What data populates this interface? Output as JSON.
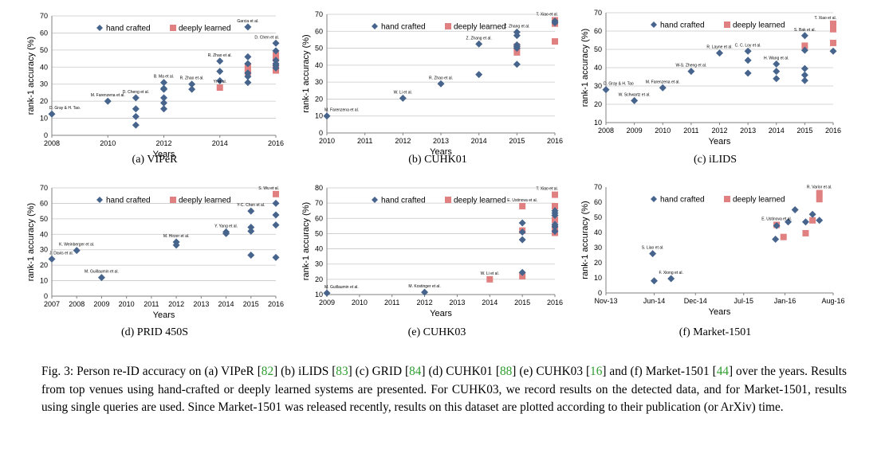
{
  "legend": {
    "hand": "hand crafted",
    "deep": "deeply learned"
  },
  "colors": {
    "hand": "#46648c",
    "deep": "#e08080",
    "grid": "#c8c8c8",
    "axis": "#808080"
  },
  "sub_captions": [
    "(a)  VIPeR",
    "(b)  CUHK01",
    "(c)  iLIDS",
    "(d)  PRID 450S",
    "(e)  CUHK03",
    "(f)  Market-1501"
  ],
  "caption": {
    "p1": "Fig. 3: Person re-ID accuracy on (a) VIPeR [",
    "r1": "82",
    "p2": "] (b) iLIDS [",
    "r2": "83",
    "p3": "] (c) GRID [",
    "r3": "84",
    "p4": "] (d) CUHK01 [",
    "r4": "88",
    "p5": "] (e) CUHK03 [",
    "r5": "16",
    "p6": "] and (f) Market-1501 [",
    "r6": "44",
    "p7": "] over the years. Results from top venues using hand-crafted or deeply learned systems are presented. For CUHK03, we record results on the detected data, and for Market-1501, results using single queries are used. Since Market-1501 was released recently, results on this dataset are plotted according to their publication (or ArXiv) time."
  },
  "chart_data": [
    {
      "type": "scatter",
      "xlabel": "Years",
      "ylabel": "rank-1 accuracy (%)",
      "xlim": [
        2008,
        2016
      ],
      "ylim": [
        0,
        70
      ],
      "xticks": [
        2008,
        2010,
        2012,
        2014,
        2016
      ],
      "xtick_labels": [
        "2008",
        "2010",
        "2012",
        "2014",
        "2016"
      ],
      "yticks": [
        0,
        10,
        20,
        30,
        40,
        50,
        60,
        70
      ],
      "grid": true,
      "legend": "top",
      "series": [
        {
          "name": "hand crafted",
          "marker": "diamond",
          "x": [
            2008,
            2010,
            2011,
            2011,
            2011,
            2011,
            2012,
            2012,
            2012,
            2012,
            2012,
            2012,
            2013,
            2013,
            2014,
            2014,
            2014,
            2015,
            2015,
            2015,
            2015,
            2015,
            2015,
            2016,
            2016,
            2016,
            2016,
            2016,
            2016
          ],
          "y": [
            12.5,
            20,
            22,
            15.5,
            11,
            6,
            31,
            27,
            22,
            19,
            15.5,
            27.5,
            30,
            27,
            43.5,
            37.5,
            32,
            63.5,
            46,
            42,
            36.5,
            34.5,
            31,
            54,
            49.5,
            44,
            42,
            39.5,
            41
          ]
        },
        {
          "name": "deeply learned",
          "marker": "square",
          "x": [
            2014,
            2015,
            2015,
            2015,
            2016,
            2016,
            2016,
            2016
          ],
          "y": [
            28,
            40.5,
            38.5,
            37,
            47,
            45,
            40,
            38
          ]
        }
      ],
      "annotations": [
        {
          "text": "D. Gray & H. Tao.",
          "x": 2008,
          "y": 12.5
        },
        {
          "text": "M. Farenzena et al.",
          "x": 2010,
          "y": 20
        },
        {
          "text": "D. Cheng et al.",
          "x": 2011,
          "y": 22
        },
        {
          "text": "B. Ma et al.",
          "x": 2012,
          "y": 31
        },
        {
          "text": "R. Zhao et al.",
          "x": 2013,
          "y": 30
        },
        {
          "text": "R. Zhao et al.",
          "x": 2014,
          "y": 43.5
        },
        {
          "text": "Yi et al.",
          "x": 2014,
          "y": 28
        },
        {
          "text": "Garcia et al.",
          "x": 2015,
          "y": 63.5
        },
        {
          "text": "D. Chen et al.",
          "x": 2016,
          "y": 54
        }
      ]
    },
    {
      "type": "scatter",
      "xlabel": "Years",
      "ylabel": "rank-1 accuracy (%)",
      "xlim": [
        2010,
        2016
      ],
      "ylim": [
        0,
        70
      ],
      "xticks": [
        2010,
        2011,
        2012,
        2013,
        2014,
        2015,
        2016
      ],
      "xtick_labels": [
        "2010",
        "2011",
        "2012",
        "2013",
        "2014",
        "2015",
        "2016"
      ],
      "yticks": [
        0,
        10,
        20,
        30,
        40,
        50,
        60,
        70
      ],
      "grid": true,
      "legend": "top",
      "series": [
        {
          "name": "hand crafted",
          "marker": "diamond",
          "x": [
            2010,
            2012,
            2013,
            2014,
            2014,
            2015,
            2015,
            2015,
            2015,
            2015,
            2015,
            2016,
            2016
          ],
          "y": [
            10,
            20.5,
            29,
            34.5,
            52.5,
            59.5,
            57.5,
            52,
            51,
            50,
            40.5,
            66,
            65
          ]
        },
        {
          "name": "deeply learned",
          "marker": "square",
          "x": [
            2015,
            2015,
            2016,
            2016,
            2016
          ],
          "y": [
            47.5,
            51,
            54,
            66.5,
            64.5
          ]
        }
      ],
      "annotations": [
        {
          "text": "M. Farenzena et al.",
          "x": 2010,
          "y": 10
        },
        {
          "text": "W. Li et al.",
          "x": 2012,
          "y": 20.5
        },
        {
          "text": "R. Zhao et al.",
          "x": 2013,
          "y": 29
        },
        {
          "text": "Z. Zhang et al.",
          "x": 2014,
          "y": 52.5
        },
        {
          "text": "Z. Zhang et al.",
          "x": 2015,
          "y": 59.5
        },
        {
          "text": "T. Xiao et al.",
          "x": 2016,
          "y": 66.5
        }
      ]
    },
    {
      "type": "scatter",
      "xlabel": "Years",
      "ylabel": "rank-1 accuracy (%)",
      "xlim": [
        2008,
        2016
      ],
      "ylim": [
        10,
        70
      ],
      "xticks": [
        2008,
        2009,
        2010,
        2011,
        2012,
        2013,
        2014,
        2015,
        2016
      ],
      "xtick_labels": [
        "2008",
        "2009",
        "2010",
        "2011",
        "2012",
        "2013",
        "2014",
        "2015",
        "2016"
      ],
      "yticks": [
        10,
        20,
        30,
        40,
        50,
        60,
        70
      ],
      "grid": true,
      "legend": "top",
      "series": [
        {
          "name": "hand crafted",
          "marker": "diamond",
          "x": [
            2008,
            2009,
            2010,
            2011,
            2012,
            2013,
            2013,
            2013,
            2014,
            2014,
            2014,
            2015,
            2015,
            2015,
            2015,
            2015,
            2016
          ],
          "y": [
            28,
            22,
            29,
            38,
            48,
            49,
            44,
            37,
            42,
            38,
            34,
            57.5,
            49.5,
            39.5,
            36,
            33,
            49
          ]
        },
        {
          "name": "deeply learned",
          "marker": "square",
          "x": [
            2015,
            2016,
            2016,
            2016
          ],
          "y": [
            52,
            64,
            61,
            53.5
          ]
        }
      ],
      "annotations": [
        {
          "text": "D. Gray & H. Tao",
          "x": 2008,
          "y": 28
        },
        {
          "text": "W. Schwartz et al.",
          "x": 2009,
          "y": 22
        },
        {
          "text": "M. Farenzena et al.",
          "x": 2010,
          "y": 29
        },
        {
          "text": "W-S. Zheng et al.",
          "x": 2011,
          "y": 38
        },
        {
          "text": "R. Layne et al.",
          "x": 2012,
          "y": 48
        },
        {
          "text": "C. C. Loy et al.",
          "x": 2013,
          "y": 49
        },
        {
          "text": "H. Wang et al.",
          "x": 2014,
          "y": 42
        },
        {
          "text": "S. Bak et al.",
          "x": 2015,
          "y": 57.5
        },
        {
          "text": "T. Xiao et al.",
          "x": 2016,
          "y": 64
        }
      ]
    },
    {
      "type": "scatter",
      "xlabel": "Years",
      "ylabel": "rank-1 accuracy (%)",
      "xlim": [
        2007,
        2016
      ],
      "ylim": [
        0,
        70
      ],
      "xticks": [
        2007,
        2008,
        2009,
        2010,
        2011,
        2012,
        2013,
        2014,
        2015,
        2016
      ],
      "xtick_labels": [
        "2007",
        "2008",
        "2009",
        "2010",
        "2011",
        "2012",
        "2013",
        "2014",
        "2015",
        "2016"
      ],
      "yticks": [
        0,
        10,
        20,
        30,
        40,
        50,
        60,
        70
      ],
      "grid": true,
      "legend": "top",
      "series": [
        {
          "name": "hand crafted",
          "marker": "diamond",
          "x": [
            2007,
            2008,
            2009,
            2012,
            2012,
            2014,
            2014,
            2015,
            2015,
            2015,
            2015,
            2016,
            2016,
            2016,
            2016
          ],
          "y": [
            24,
            29.5,
            12,
            35,
            33,
            41.5,
            40.5,
            55,
            44.5,
            42,
            26.5,
            60,
            52.5,
            46,
            25
          ]
        },
        {
          "name": "deeply learned",
          "marker": "square",
          "x": [
            2016
          ],
          "y": [
            66
          ]
        }
      ],
      "annotations": [
        {
          "text": "J. Davis et al.",
          "x": 2007,
          "y": 24
        },
        {
          "text": "K. Weinberger et al.",
          "x": 2008,
          "y": 29.5
        },
        {
          "text": "M. Guillaumin et al.",
          "x": 2009,
          "y": 12
        },
        {
          "text": "M. Hirzer et al.",
          "x": 2012,
          "y": 35
        },
        {
          "text": "Y. Yang et al.",
          "x": 2014,
          "y": 41.5
        },
        {
          "text": "Y-C. Chen et al.",
          "x": 2015,
          "y": 55
        },
        {
          "text": "S. Wu et al.",
          "x": 2016,
          "y": 66
        }
      ]
    },
    {
      "type": "scatter",
      "xlabel": "Years",
      "ylabel": "rank-1 accuracy (%)",
      "xlim": [
        2009,
        2016
      ],
      "ylim": [
        10,
        80
      ],
      "xticks": [
        2009,
        2010,
        2011,
        2012,
        2013,
        2014,
        2015,
        2016
      ],
      "xtick_labels": [
        "2009",
        "2010",
        "2011",
        "2012",
        "2013",
        "2014",
        "2015",
        "2016"
      ],
      "yticks": [
        10,
        20,
        30,
        40,
        50,
        60,
        70,
        80
      ],
      "grid": true,
      "legend": "top",
      "series": [
        {
          "name": "hand crafted",
          "marker": "diamond",
          "x": [
            2009,
            2012,
            2015,
            2015,
            2015,
            2015,
            2016,
            2016,
            2016,
            2016,
            2016,
            2016
          ],
          "y": [
            11,
            11.5,
            57,
            51,
            46,
            24.5,
            65,
            63.5,
            56,
            54.5,
            51.5,
            62
          ]
        },
        {
          "name": "deeply learned",
          "marker": "square",
          "x": [
            2014,
            2015,
            2015,
            2015,
            2016,
            2016,
            2016,
            2016,
            2016
          ],
          "y": [
            20,
            68,
            52,
            22,
            75.5,
            68,
            59,
            53.5,
            50.5
          ]
        }
      ],
      "annotations": [
        {
          "text": "M. Guillaumin et al.",
          "x": 2009,
          "y": 11
        },
        {
          "text": "M. Kostinger et al.",
          "x": 2012,
          "y": 11.5
        },
        {
          "text": "W. Li et al.",
          "x": 2014,
          "y": 20
        },
        {
          "text": "E. Ustinova et al.",
          "x": 2015,
          "y": 68
        },
        {
          "text": "T. Xiao et al.",
          "x": 2016,
          "y": 75.5
        }
      ]
    },
    {
      "type": "scatter",
      "xlabel": "Years",
      "ylabel": "rank-1 accuracy (%)",
      "xlim": [
        "2013-11",
        "2016-08"
      ],
      "ylim": [
        0,
        70
      ],
      "xticks": [
        "2013-11",
        "2014-06",
        "2014-12",
        "2015-07",
        "2016-01",
        "2016-08"
      ],
      "xtick_labels": [
        "Nov-13",
        "Jun-14",
        "Dec-14",
        "Jul-15",
        "Jan-16",
        "Aug-16"
      ],
      "yticks": [
        0,
        10,
        20,
        30,
        40,
        50,
        60,
        70
      ],
      "grid": false,
      "legend": "top",
      "series": [
        {
          "name": "hand crafted",
          "marker": "diamond",
          "x": [
            "2014-05-25",
            "2014-06-01",
            "2014-08-15",
            "2015-11-20",
            "2015-11-25",
            "2016-01-15",
            "2016-02-15",
            "2016-04-01",
            "2016-05-01",
            "2016-06-01"
          ],
          "y": [
            26,
            8,
            9.5,
            35.5,
            44.5,
            47,
            55,
            47,
            52,
            48
          ]
        },
        {
          "name": "deeply learned",
          "marker": "square",
          "x": [
            "2015-11-25",
            "2015-12-25",
            "2016-04-01",
            "2016-05-01",
            "2016-06-01",
            "2016-06-01"
          ],
          "y": [
            45,
            37,
            39.5,
            48,
            66,
            62
          ]
        }
      ],
      "annotations": [
        {
          "text": "S. Liao et al.",
          "x": "2014-05-25",
          "y": 26
        },
        {
          "text": "F. Xiong et al.",
          "x": "2014-08-15",
          "y": 9.5
        },
        {
          "text": "E. Ustinova et al.",
          "x": "2015-11-25",
          "y": 45
        },
        {
          "text": "R. Varior et al.",
          "x": "2016-06-01",
          "y": 66
        }
      ]
    }
  ]
}
